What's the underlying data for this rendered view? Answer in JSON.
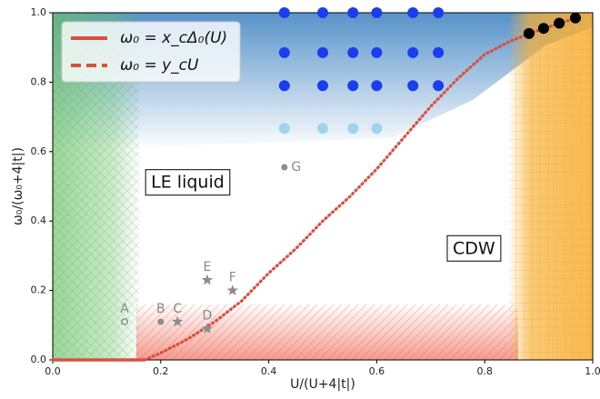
{
  "chart_data": {
    "type": "scatter",
    "xlabel": "U/(U+4|t|)",
    "ylabel": "ω₀/(ω₀+4|t|)",
    "xlim": [
      0,
      1
    ],
    "ylim": [
      0,
      1
    ],
    "xticks": [
      {
        "value": 0,
        "label": "0.0"
      },
      {
        "value": 0.2,
        "label": "0.2"
      },
      {
        "value": 0.4,
        "label": "0.4"
      },
      {
        "value": 0.6,
        "label": "0.6"
      },
      {
        "value": 0.8,
        "label": "0.8"
      },
      {
        "value": 1,
        "label": "1.0"
      }
    ],
    "yticks": [
      {
        "value": 0,
        "label": "0.0"
      },
      {
        "value": 0.2,
        "label": "0.2"
      },
      {
        "value": 0.4,
        "label": "0.4"
      },
      {
        "value": 0.6,
        "label": "0.6"
      },
      {
        "value": 0.8,
        "label": "0.8"
      },
      {
        "value": 1,
        "label": "1.0"
      }
    ],
    "annotations": [
      {
        "text": "LE liquid",
        "x": 0.25,
        "y": 0.51
      },
      {
        "text": "CDW",
        "x": 0.78,
        "y": 0.32
      }
    ],
    "series": [
      {
        "name": "ω₀ = x_cΔ₀(U)",
        "color": "#d9503f",
        "style": "line",
        "x": [
          0,
          0.17
        ],
        "values": [
          0,
          0
        ]
      },
      {
        "name": "ω₀ = y_cU",
        "color": "#d9503f",
        "style": "dotted",
        "x": [
          0.17,
          0.2,
          0.25,
          0.3,
          0.35,
          0.4,
          0.45,
          0.5,
          0.55,
          0.6,
          0.65,
          0.7,
          0.75,
          0.8,
          0.85,
          0.9,
          0.95,
          0.97
        ],
        "values": [
          0,
          0.02,
          0.06,
          0.11,
          0.17,
          0.25,
          0.32,
          0.4,
          0.47,
          0.55,
          0.64,
          0.73,
          0.81,
          0.88,
          0.92,
          0.95,
          0.975,
          0.985
        ]
      },
      {
        "color": "#1a3df0",
        "style": "markers",
        "x": [
          0.429,
          0.5,
          0.556,
          0.6,
          0.667,
          0.714,
          0.429,
          0.5,
          0.556,
          0.6,
          0.667,
          0.714,
          0.429,
          0.5,
          0.556,
          0.6,
          0.667,
          0.714
        ],
        "values": [
          1,
          1,
          1,
          1,
          1,
          1,
          0.885,
          0.885,
          0.885,
          0.885,
          0.885,
          0.885,
          0.79,
          0.79,
          0.79,
          0.79,
          0.79,
          0.79
        ]
      },
      {
        "color": "#9fd3ee",
        "style": "markers",
        "x": [
          0.429,
          0.5,
          0.556,
          0.6
        ],
        "values": [
          0.667,
          0.667,
          0.667,
          0.667
        ]
      },
      {
        "color": "#000000",
        "style": "markers",
        "x": [
          0.882,
          0.909,
          0.938,
          0.968
        ],
        "values": [
          0.94,
          0.955,
          0.97,
          0.985
        ]
      },
      {
        "color": "#8c8c8c",
        "style": "markers",
        "labels": [
          "A",
          "B",
          "C",
          "D",
          "E",
          "F",
          "G"
        ],
        "markers": [
          "open-circle",
          "circle",
          "star",
          "star",
          "star",
          "star",
          "circle"
        ],
        "x": [
          0.133,
          0.2,
          0.231,
          0.286,
          0.286,
          0.333,
          0.429
        ],
        "values": [
          0.11,
          0.11,
          0.11,
          0.09,
          0.23,
          0.2,
          0.555
        ]
      }
    ]
  }
}
